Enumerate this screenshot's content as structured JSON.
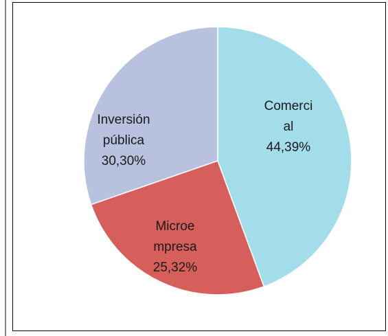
{
  "chart_data": {
    "type": "pie",
    "categories": [
      "Comercial",
      "Microempresa",
      "Inversión pública"
    ],
    "values": [
      44.39,
      25.32,
      30.3
    ],
    "value_labels": [
      "44,39%",
      "25,32%",
      "30,30%"
    ],
    "colors": [
      "#a3dde9",
      "#d65f5b",
      "#b8c2de"
    ]
  }
}
